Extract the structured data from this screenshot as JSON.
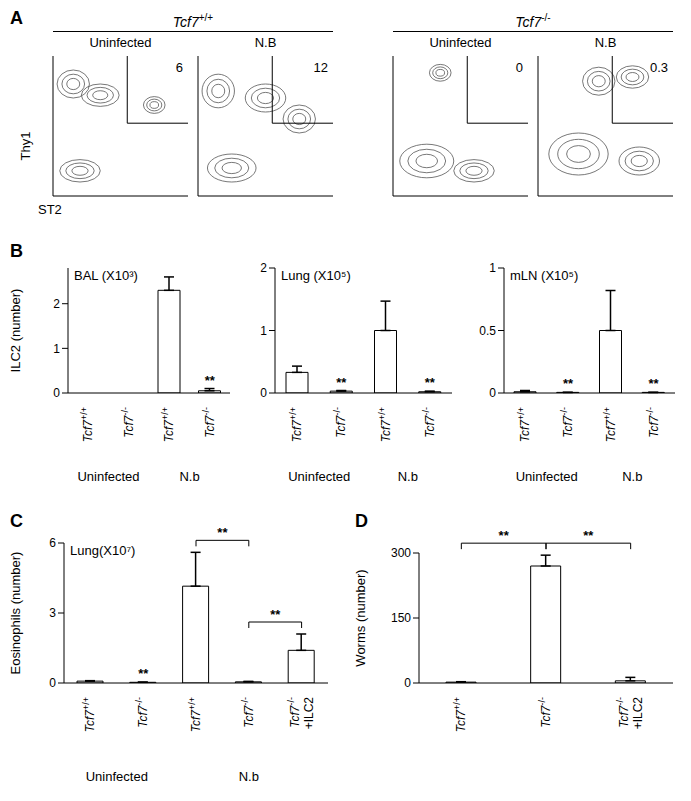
{
  "panel_a": {
    "panel": "A",
    "y_label": "Thy1",
    "x_label": "ST2",
    "groups": [
      {
        "title": "Tcf7+/+",
        "plots": [
          {
            "title": "Uninfected",
            "gate": 6
          },
          {
            "title": "N.B",
            "gate": 12
          }
        ]
      },
      {
        "title": "Tcf7-/-",
        "plots": [
          {
            "title": "Uninfected",
            "gate": 0
          },
          {
            "title": "N.B",
            "gate": 0.3
          }
        ]
      }
    ]
  },
  "chart_data": [
    {
      "panel": "B",
      "type": "bar",
      "title": "BAL (X10³)",
      "y_label": "ILC2 (number)",
      "categories": [
        "Tcf7+/+",
        "Tcf7-/-",
        "Tcf7+/+",
        "Tcf7-/-"
      ],
      "category_groups": [
        "Uninfected",
        "Uninfected",
        "N.b",
        "N.b"
      ],
      "values": [
        0,
        0,
        2.3,
        0.05
      ],
      "errors": [
        0,
        0,
        0.3,
        0.05
      ],
      "ylim": [
        0,
        2.8
      ],
      "yticks": [
        0,
        1,
        2
      ],
      "color": "#ffffff",
      "significance": [
        {
          "categories": [
            3
          ],
          "label": "**"
        }
      ]
    },
    {
      "type": "bar",
      "title": "Lung (X10⁵)",
      "categories": [
        "Tcf7+/+",
        "Tcf7-/-",
        "Tcf7+/+",
        "Tcf7-/-"
      ],
      "category_groups": [
        "Uninfected",
        "Uninfected",
        "N.b",
        "N.b"
      ],
      "values": [
        0.33,
        0.03,
        1.0,
        0.02
      ],
      "errors": [
        0.1,
        0.01,
        0.47,
        0.01
      ],
      "ylim": [
        0,
        2
      ],
      "yticks": [
        0,
        1,
        2
      ],
      "color": "#ffffff",
      "significance": [
        {
          "categories": [
            1
          ],
          "label": "**"
        },
        {
          "categories": [
            3
          ],
          "label": "**"
        }
      ]
    },
    {
      "type": "bar",
      "title": "mLN (X10⁵)",
      "categories": [
        "Tcf7+/+",
        "Tcf7-/-",
        "Tcf7+/+",
        "Tcf7-/-"
      ],
      "category_groups": [
        "Uninfected",
        "Uninfected",
        "N.b",
        "N.b"
      ],
      "values": [
        0.01,
        0.005,
        0.5,
        0.005
      ],
      "errors": [
        0.01,
        0,
        0.32,
        0
      ],
      "ylim": [
        0,
        1
      ],
      "yticks": [
        0,
        0.5,
        1
      ],
      "color": "#ffffff",
      "significance": [
        {
          "categories": [
            1
          ],
          "label": "**"
        },
        {
          "categories": [
            3
          ],
          "label": "**"
        }
      ]
    },
    {
      "panel": "C",
      "type": "bar",
      "title": "Lung(X10⁷)",
      "y_label": "Eosinophils (number)",
      "categories": [
        "Tcf7+/+",
        "Tcf7-/-",
        "Tcf7+/+",
        "Tcf7-/-",
        "Tcf7-/- +ILC2"
      ],
      "category_groups": [
        "Uninfected",
        "Uninfected",
        "N.b",
        "N.b",
        "N.b"
      ],
      "values": [
        0.08,
        0.03,
        4.15,
        0.05,
        1.4
      ],
      "errors": [
        0.02,
        0.01,
        1.45,
        0.02,
        0.7
      ],
      "ylim": [
        0,
        6
      ],
      "yticks": [
        0,
        3,
        6
      ],
      "color": "#ffffff",
      "significance": [
        {
          "categories": [
            1
          ],
          "label": "**"
        },
        {
          "categories": [
            2,
            3
          ],
          "label": "**"
        },
        {
          "categories": [
            3,
            4
          ],
          "label": "**"
        }
      ]
    },
    {
      "panel": "D",
      "type": "bar",
      "y_label": "Worms (number)",
      "categories": [
        "Tcf7+/+",
        "Tcf7-/-",
        "Tcf7-/- +ILC2"
      ],
      "values": [
        2,
        270,
        5
      ],
      "errors": [
        1,
        25,
        8
      ],
      "ylim": [
        0,
        300
      ],
      "yticks": [
        0,
        150,
        300
      ],
      "color": "#ffffff",
      "significance": [
        {
          "categories": [
            0,
            1
          ],
          "label": "**"
        },
        {
          "categories": [
            1,
            2
          ],
          "label": "**"
        }
      ]
    }
  ]
}
